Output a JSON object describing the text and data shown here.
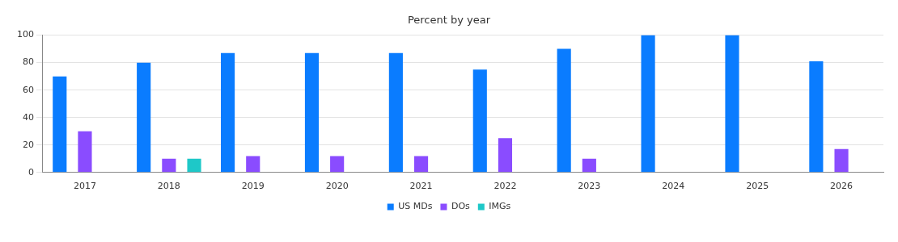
{
  "chart_data": {
    "type": "bar",
    "title": "Percent by year",
    "categories": [
      "2017",
      "2018",
      "2019",
      "2020",
      "2021",
      "2022",
      "2023",
      "2024",
      "2025",
      "2026"
    ],
    "series": [
      {
        "name": "US MDs",
        "color": "#0a7cff",
        "values": [
          70,
          80,
          87,
          87,
          87,
          75,
          90,
          100,
          100,
          81
        ]
      },
      {
        "name": "DOs",
        "color": "#8a4cff",
        "values": [
          30,
          10,
          12,
          12,
          12,
          25,
          10,
          null,
          null,
          17
        ]
      },
      {
        "name": "IMGs",
        "color": "#1ec8c8",
        "values": [
          null,
          10,
          null,
          null,
          null,
          null,
          null,
          null,
          null,
          null
        ]
      }
    ],
    "ylim": [
      0,
      100
    ],
    "yticks": [
      0,
      20,
      40,
      60,
      80,
      100
    ],
    "grid": "y",
    "legend": "bottom"
  }
}
